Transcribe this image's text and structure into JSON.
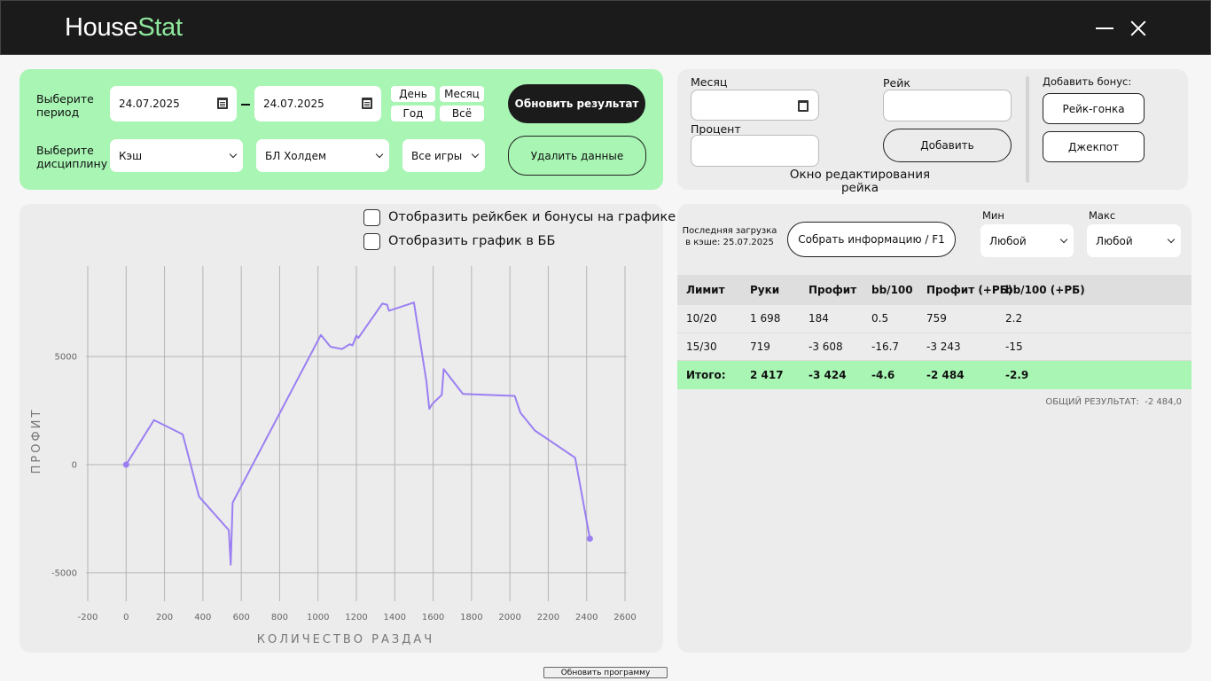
{
  "app": {
    "title_main": "House",
    "title_accent": "Stat",
    "accent_color": "#8ee89c"
  },
  "filters": {
    "period_label": "Выберите период",
    "date_from": "24.07.2025",
    "date_to": "24.07.2025",
    "quick": {
      "day": "День",
      "month": "Месяц",
      "year": "Год",
      "all": "Всё"
    },
    "discipline_label": "Выберите дисциплину",
    "game_type": "Кэш",
    "variant": "БЛ Холдем",
    "games": "Все игры",
    "refresh_button": "Обновить результат",
    "delete_button": "Удалить данные"
  },
  "rake_editor": {
    "month_label": "Месяц",
    "percent_label": "Процент",
    "rake_label": "Рейк",
    "add_button": "Добавить",
    "caption": "Окно редактирования рейка",
    "bonus_label": "Добавить бонус:",
    "race_button": "Рейк-гонка",
    "jackpot_button": "Джекпот"
  },
  "chart_options": {
    "show_rakeback": "Отобразить рейкбек и бонусы на графике",
    "show_bb": "Отобразить график в ББ"
  },
  "chart_data": {
    "type": "line",
    "xlabel": "КОЛИЧЕСТВО РАЗДАЧ",
    "ylabel": "ПРОФИТ",
    "xlim": [
      -200,
      2600
    ],
    "ylim": [
      -6400,
      9600
    ],
    "xticks": [
      -200,
      0,
      200,
      400,
      600,
      800,
      1000,
      1200,
      1400,
      1600,
      1800,
      2000,
      2200,
      2400,
      2600
    ],
    "yticks": [
      -5000,
      0,
      5000
    ],
    "grid": true,
    "line_color": "#9b7ff2",
    "series": [
      {
        "x": [
          0,
          145,
          295,
          380,
          535,
          545,
          555,
          1015,
          1065,
          1125,
          1165,
          1180,
          1200,
          1210,
          1335,
          1360,
          1370,
          1500,
          1565,
          1580,
          1595,
          1645,
          1655,
          1755,
          2025,
          2055,
          2130,
          2340,
          2417
        ],
        "y": [
          0,
          2060,
          1400,
          -1480,
          -3030,
          -4630,
          -1760,
          6000,
          5450,
          5350,
          5570,
          5520,
          5970,
          5860,
          7450,
          7400,
          7120,
          7500,
          3850,
          2580,
          2800,
          3230,
          4420,
          3270,
          3180,
          2400,
          1580,
          320,
          -3424
        ]
      }
    ]
  },
  "stats": {
    "cache_label": "Последняя загрузка в кэше: 25.07.2025",
    "collect_button": "Собрать информацию / F1",
    "min_label": "Мин",
    "min_value": "Любой",
    "max_label": "Макс",
    "max_value": "Любой",
    "columns": [
      "Лимит",
      "Руки",
      "Профит",
      "bb/100",
      "Профит (+РБ)",
      "bb/100 (+РБ)"
    ],
    "rows": [
      [
        "10/20",
        "1 698",
        "184",
        "0.5",
        "759",
        "2.2"
      ],
      [
        "15/30",
        "719",
        "-3 608",
        "-16.7",
        "-3 243",
        "-15"
      ]
    ],
    "total": [
      "Итого:",
      "2 417",
      "-3 424",
      "-4.6",
      "-2 484",
      "-2.9"
    ],
    "summary_label": "ОБЩИЙ РЕЗУЛЬТАТ:",
    "summary_value": "-2 484,0"
  },
  "footer": {
    "update_button": "Обновить программу"
  }
}
